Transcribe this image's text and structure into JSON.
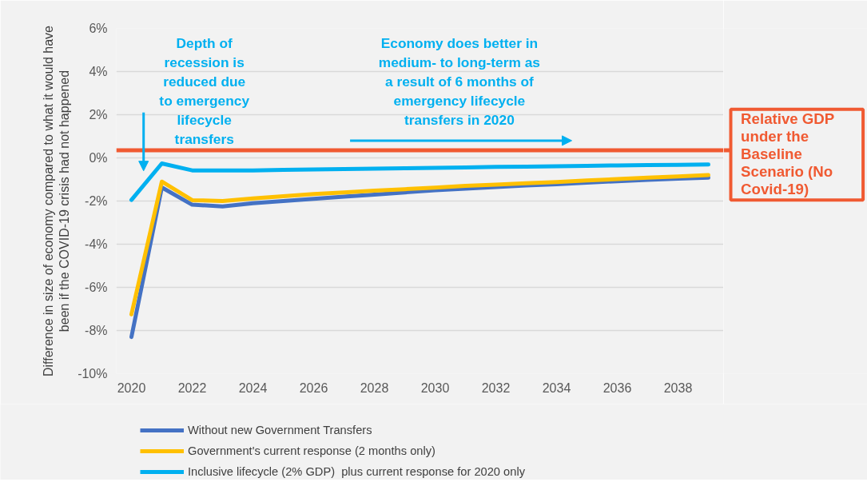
{
  "chart_data": {
    "type": "line",
    "ylabel": "Difference in size of economy compared to what it would have been if the COVID-19 crisis had not happened",
    "x": [
      2020,
      2021,
      2022,
      2023,
      2024,
      2025,
      2026,
      2027,
      2028,
      2029,
      2030,
      2031,
      2032,
      2033,
      2034,
      2035,
      2036,
      2037,
      2038,
      2039
    ],
    "series": [
      {
        "name": "Without new Government Transfers",
        "color": "#4472c4",
        "values": [
          -8.3,
          -1.37,
          -2.17,
          -2.25,
          -2.1,
          -2.0,
          -1.9,
          -1.8,
          -1.7,
          -1.6,
          -1.5,
          -1.43,
          -1.35,
          -1.28,
          -1.22,
          -1.15,
          -1.08,
          -1.02,
          -0.96,
          -0.92
        ]
      },
      {
        "name": "Government's current response (2 months only)",
        "color": "#ffc000",
        "values": [
          -7.25,
          -1.1,
          -1.96,
          -2.0,
          -1.88,
          -1.78,
          -1.68,
          -1.6,
          -1.52,
          -1.45,
          -1.38,
          -1.3,
          -1.24,
          -1.18,
          -1.12,
          -1.05,
          -0.98,
          -0.92,
          -0.86,
          -0.8
        ]
      },
      {
        "name": "Inclusive lifecycle (2% GDP)  plus current response for 2020 only",
        "color": "#00b0f0",
        "values": [
          -1.95,
          -0.26,
          -0.58,
          -0.58,
          -0.58,
          -0.56,
          -0.54,
          -0.52,
          -0.5,
          -0.48,
          -0.46,
          -0.44,
          -0.42,
          -0.41,
          -0.39,
          -0.37,
          -0.35,
          -0.33,
          -0.32,
          -0.31
        ]
      }
    ],
    "xlim": [
      2019.5,
      2039.5
    ],
    "xticks": [
      2020,
      2022,
      2024,
      2026,
      2028,
      2030,
      2032,
      2034,
      2036,
      2038
    ],
    "ylim": [
      -10,
      6
    ],
    "yticks": [
      {
        "value": -10,
        "label": "-10%"
      },
      {
        "value": -8,
        "label": "-8%"
      },
      {
        "value": -6,
        "label": "-6%"
      },
      {
        "value": -4,
        "label": "-4%"
      },
      {
        "value": -2,
        "label": "-2%"
      },
      {
        "value": 0,
        "label": "0%"
      },
      {
        "value": 2,
        "label": "2%"
      },
      {
        "value": 4,
        "label": "4%"
      },
      {
        "value": 6,
        "label": "6%"
      }
    ],
    "grid": "y",
    "legend": "bottom",
    "line_style": "solid",
    "marker": "none",
    "ref_lines": [
      {
        "axis": "y",
        "value": 0.35,
        "label": "Relative GDP under the Baseline Scenario (No Covid-19)",
        "color": "#f05a32"
      }
    ],
    "annotations": [
      "Depth of recession is reduced due to emergency lifecycle transfers",
      "Economy does better in medium- to long-term as a result of 6 months of emergency lifecycle transfers in 2020"
    ]
  }
}
